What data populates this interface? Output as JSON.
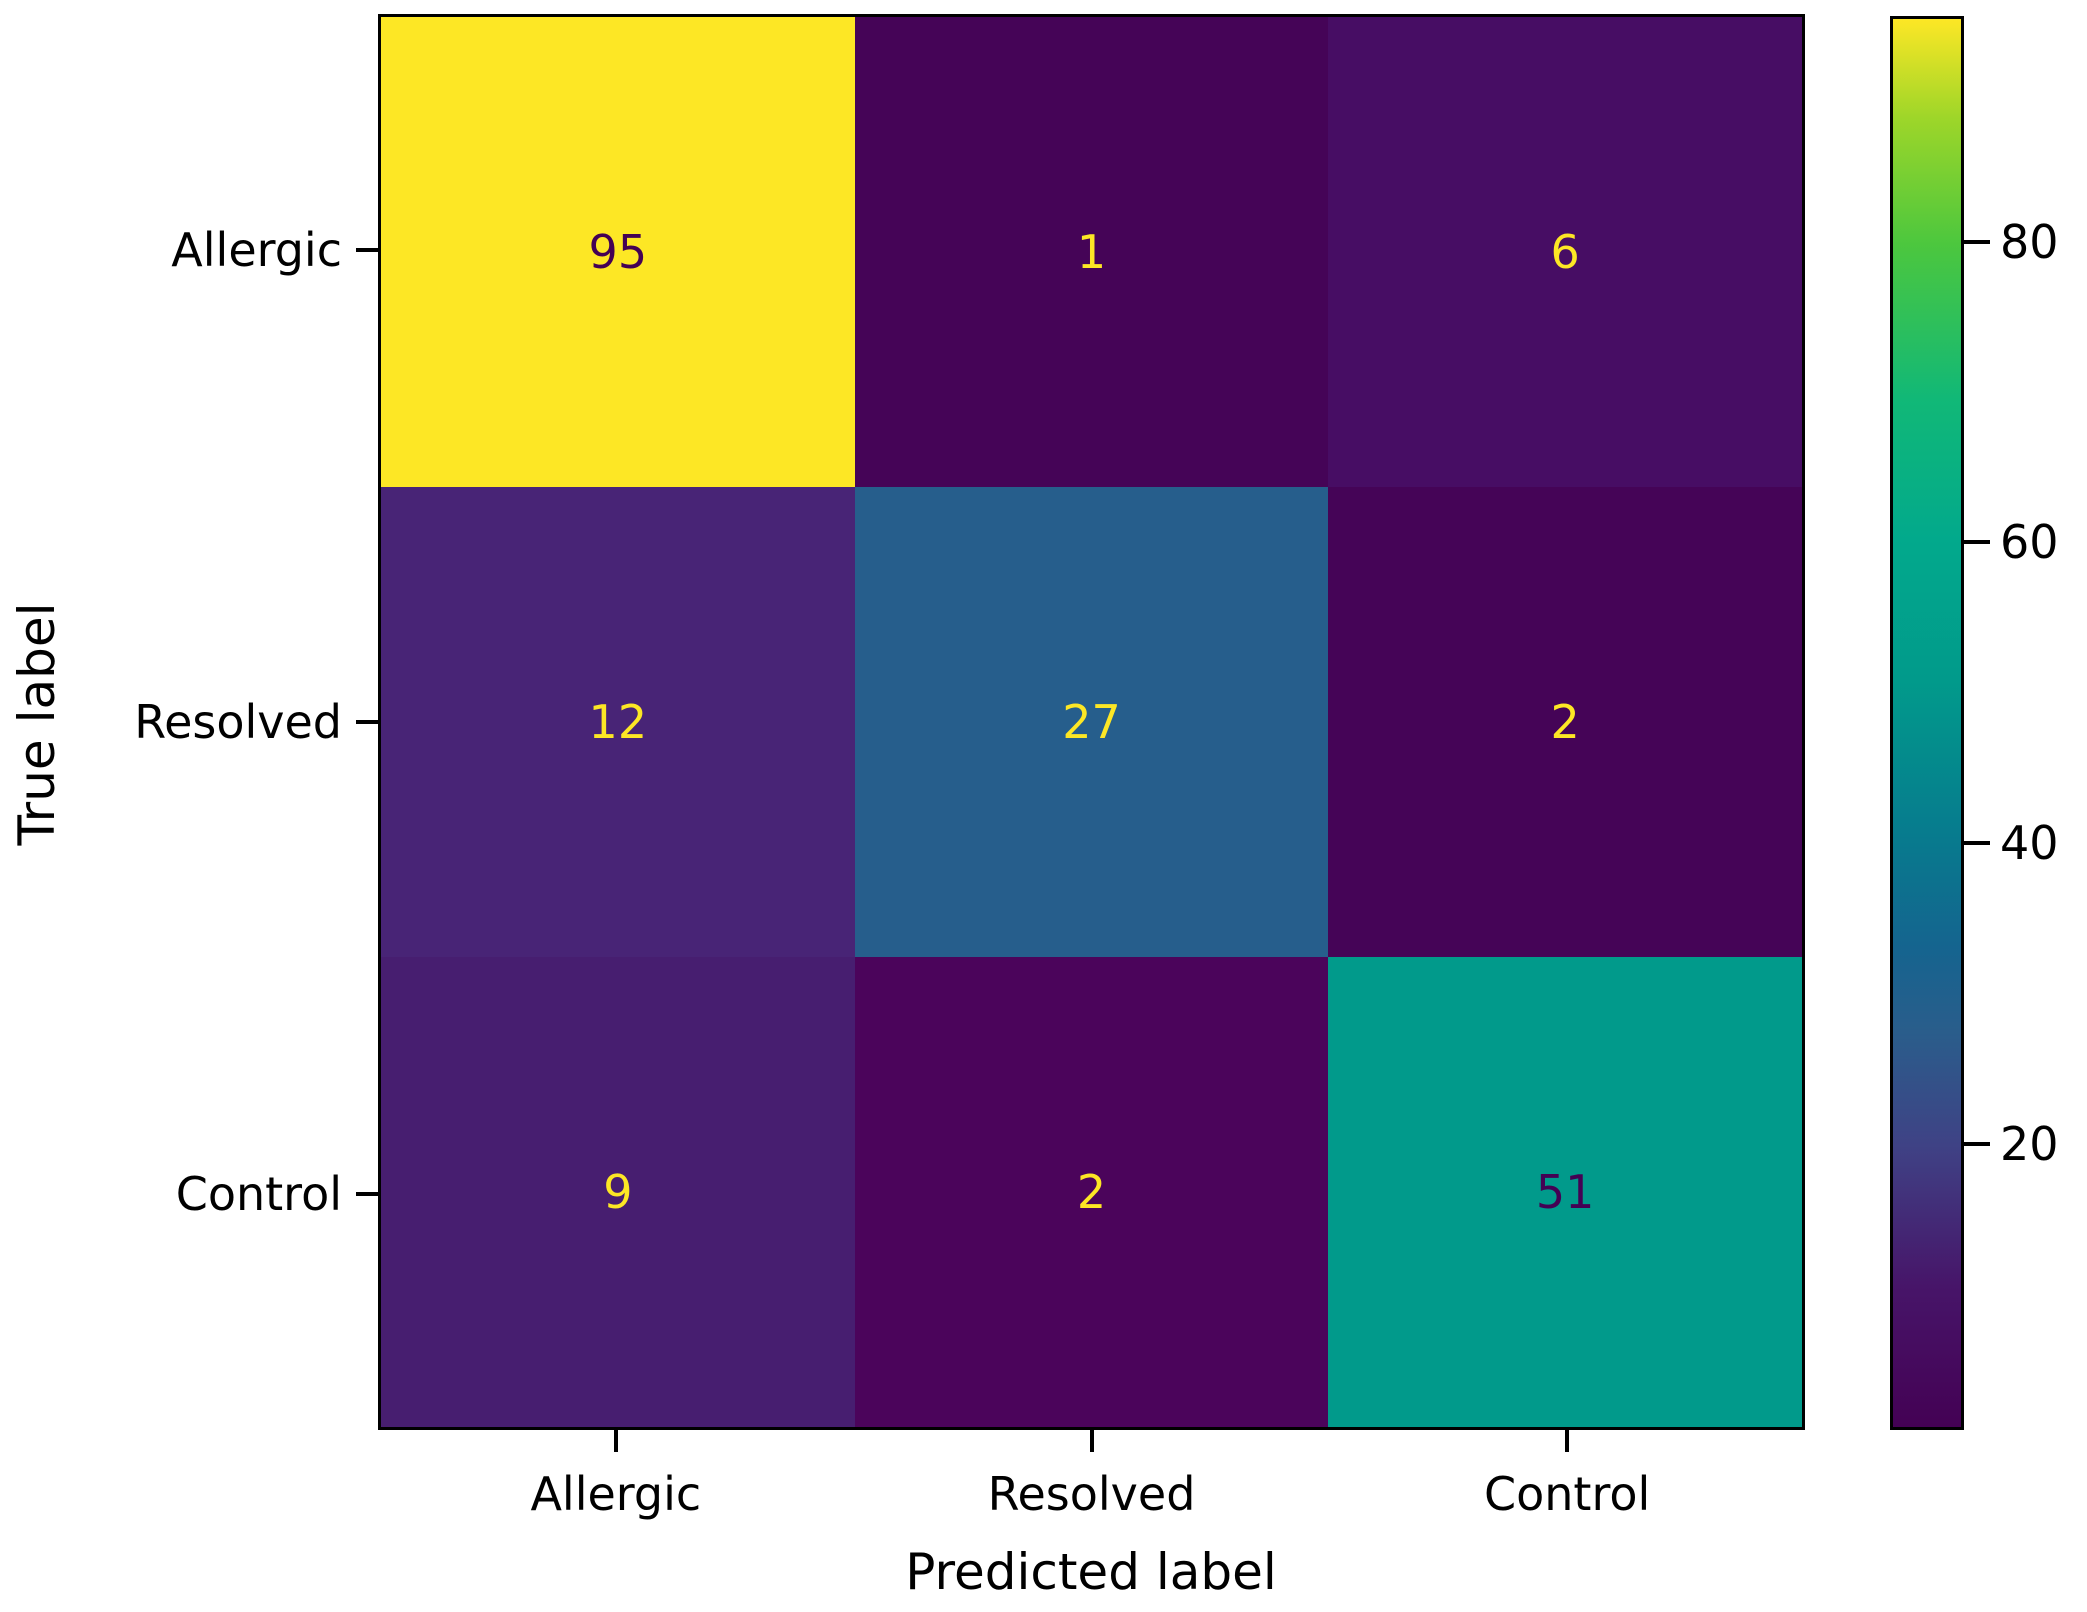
{
  "chart_data": {
    "type": "heatmap",
    "subtype": "confusion-matrix",
    "title": "",
    "xlabel": "Predicted label",
    "ylabel": "True label",
    "x_tick_labels": [
      "Allergic",
      "Resolved",
      "Control"
    ],
    "y_tick_labels": [
      "Allergic",
      "Resolved",
      "Control"
    ],
    "categories": [
      "Allergic",
      "Resolved",
      "Control"
    ],
    "matrix": [
      [
        95,
        1,
        6
      ],
      [
        12,
        27,
        2
      ],
      [
        9,
        2,
        51
      ]
    ],
    "colormap": "viridis",
    "vmin": 1,
    "vmax": 95,
    "grid": false,
    "cell_colors": [
      [
        "#fde725",
        "#450457",
        "#470d64"
      ],
      [
        "#482476",
        "#265e8c",
        "#450457"
      ],
      [
        "#471e70",
        "#4b045b",
        "#019a8b"
      ]
    ],
    "cell_text_colors": [
      [
        "#440154",
        "#fde725",
        "#fde725"
      ],
      [
        "#fde725",
        "#fde725",
        "#fde725"
      ],
      [
        "#fde725",
        "#fde725",
        "#440154"
      ]
    ],
    "colorbar": {
      "position": "right",
      "ticks": [
        80,
        60,
        40,
        20
      ],
      "gradient_stops_from_bottom": [
        {
          "pct": 0,
          "color": "#440154"
        },
        {
          "pct": 10,
          "color": "#471569"
        },
        {
          "pct": 20,
          "color": "#3f4285"
        },
        {
          "pct": 28,
          "color": "#2a5d8b"
        },
        {
          "pct": 34,
          "color": "#15648f"
        },
        {
          "pct": 42,
          "color": "#077b8e"
        },
        {
          "pct": 53,
          "color": "#019a8b"
        },
        {
          "pct": 63,
          "color": "#02a98c"
        },
        {
          "pct": 73,
          "color": "#11b877"
        },
        {
          "pct": 84,
          "color": "#4cc73e"
        },
        {
          "pct": 93,
          "color": "#9ed629"
        },
        {
          "pct": 100,
          "color": "#fde725"
        }
      ]
    }
  },
  "colors": {
    "spine": "#000000",
    "label_text": "#000000",
    "background": "#ffffff"
  }
}
